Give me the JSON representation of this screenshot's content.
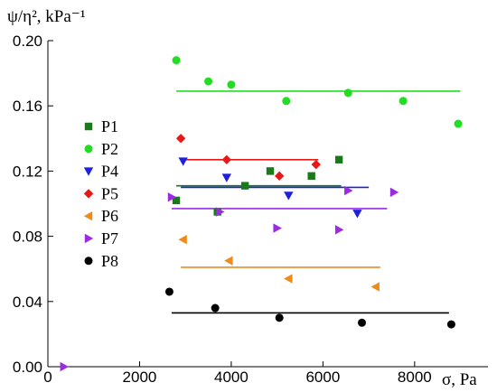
{
  "chart_data": {
    "type": "scatter",
    "title": "",
    "ylabel": "ψ/η², kPa⁻¹",
    "xlabel": "σ, Pa",
    "xlim": [
      0,
      9600
    ],
    "ylim": [
      0,
      0.2
    ],
    "xticks": [
      0,
      2000,
      4000,
      6000,
      8000
    ],
    "yticks": [
      0.0,
      0.04,
      0.08,
      0.12,
      0.16,
      0.2
    ],
    "xtick_labels": [
      "0",
      "2000",
      "4000",
      "6000",
      "8000"
    ],
    "ytick_labels": [
      "0.00",
      "0.04",
      "0.08",
      "0.12",
      "0.16",
      "0.20"
    ],
    "grid": false,
    "legend_position": "left",
    "series": [
      {
        "name": "P1",
        "color": "#1a7a1a",
        "marker": "square",
        "points": [
          [
            2800,
            0.102
          ],
          [
            3700,
            0.095
          ],
          [
            4300,
            0.111
          ],
          [
            4850,
            0.12
          ],
          [
            5750,
            0.117
          ],
          [
            6350,
            0.127
          ]
        ],
        "fit": {
          "x": [
            2800,
            6400
          ],
          "y": 0.111
        }
      },
      {
        "name": "P2",
        "color": "#22dd22",
        "marker": "circle",
        "points": [
          [
            2800,
            0.188
          ],
          [
            3500,
            0.175
          ],
          [
            4000,
            0.173
          ],
          [
            5200,
            0.163
          ],
          [
            6550,
            0.168
          ],
          [
            7750,
            0.163
          ],
          [
            8950,
            0.149
          ]
        ],
        "fit": {
          "x": [
            2800,
            9000
          ],
          "y": 0.169
        }
      },
      {
        "name": "P4",
        "color": "#1f1fe0",
        "marker": "triangle-down",
        "points": [
          [
            2950,
            0.126
          ],
          [
            3900,
            0.116
          ],
          [
            5250,
            0.105
          ],
          [
            6750,
            0.094
          ]
        ],
        "fit": {
          "x": [
            2900,
            7000
          ],
          "y": 0.11
        }
      },
      {
        "name": "P5",
        "color": "#e81818",
        "marker": "diamond",
        "points": [
          [
            2900,
            0.14
          ],
          [
            3900,
            0.127
          ],
          [
            5050,
            0.117
          ],
          [
            5850,
            0.124
          ]
        ],
        "fit": {
          "x": [
            2900,
            5900
          ],
          "y": 0.127
        }
      },
      {
        "name": "P6",
        "color": "#f08a1a",
        "marker": "triangle-left",
        "points": [
          [
            2950,
            0.078
          ],
          [
            3950,
            0.065
          ],
          [
            5250,
            0.054
          ],
          [
            7150,
            0.049
          ]
        ],
        "fit": {
          "x": [
            2900,
            7250
          ],
          "y": 0.061
        }
      },
      {
        "name": "P7",
        "color": "#9a2be0",
        "marker": "triangle-right",
        "points": [
          [
            350,
            0.0
          ],
          [
            2700,
            0.104
          ],
          [
            3750,
            0.095
          ],
          [
            5000,
            0.085
          ],
          [
            6350,
            0.084
          ],
          [
            6550,
            0.108
          ],
          [
            7550,
            0.107
          ]
        ],
        "fit": {
          "x": [
            2700,
            7400
          ],
          "y": 0.097
        }
      },
      {
        "name": "P8",
        "color": "#000000",
        "marker": "circle",
        "points": [
          [
            2650,
            0.046
          ],
          [
            3650,
            0.036
          ],
          [
            5050,
            0.03
          ],
          [
            6850,
            0.027
          ],
          [
            8800,
            0.026
          ]
        ],
        "fit": {
          "x": [
            2700,
            8750
          ],
          "y": 0.033
        }
      }
    ]
  }
}
